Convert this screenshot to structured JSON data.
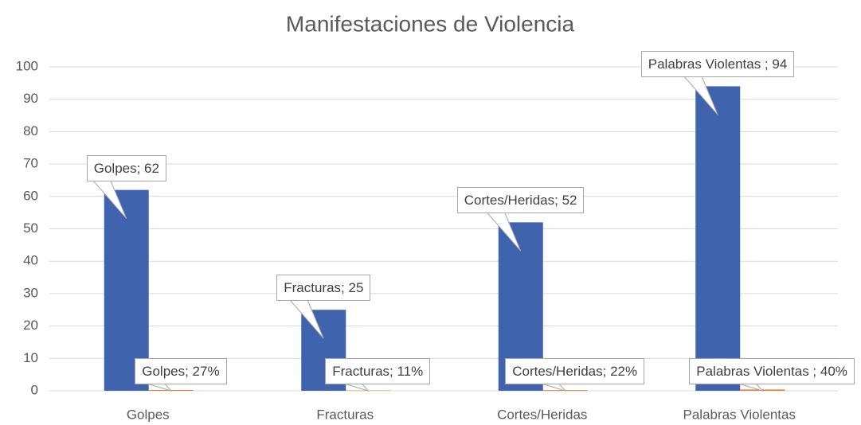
{
  "chart_data": {
    "type": "bar",
    "title": "Manifestaciones de Violencia",
    "categories": [
      "Golpes",
      "Fracturas",
      "Cortes/Heridas",
      "Palabras Violentas"
    ],
    "series": [
      {
        "color": "#4063ad",
        "values": [
          62,
          25,
          52,
          94
        ],
        "value_labels": [
          "Golpes; 62",
          "Fracturas; 25",
          "Cortes/Heridas; 52",
          "Palabras Violentas ; 94"
        ]
      },
      {
        "color": "#ed7d31",
        "values": [
          0.27,
          0.11,
          0.22,
          0.4
        ],
        "value_labels": [
          "Golpes; 27%",
          "Fracturas; 11%",
          "Cortes/Heridas; 22%",
          "Palabras Violentas ; 40%"
        ]
      }
    ],
    "ylim": [
      0,
      100
    ],
    "yticks": [
      0,
      10,
      20,
      30,
      40,
      50,
      60,
      70,
      80,
      90,
      100
    ],
    "grid": true
  }
}
